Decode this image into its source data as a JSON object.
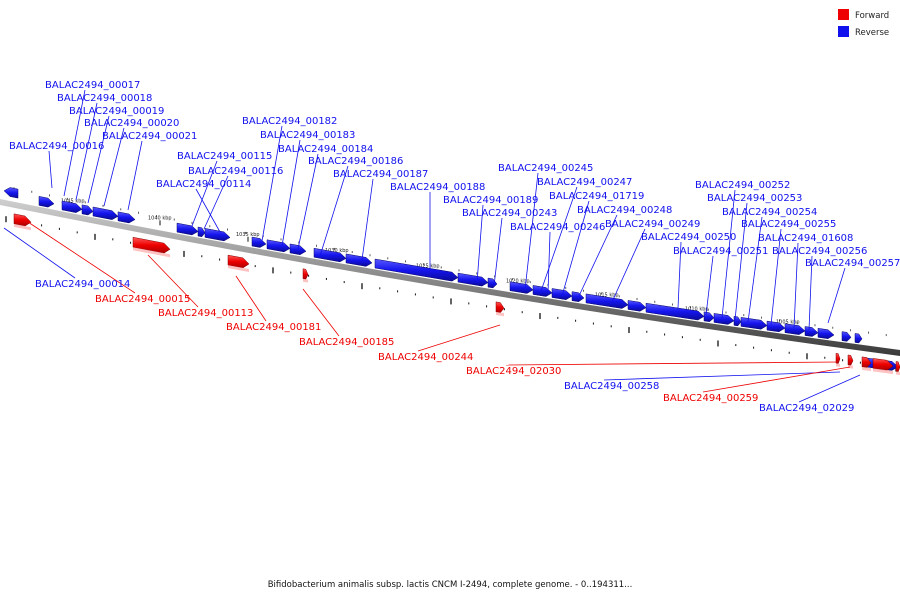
{
  "legend": {
    "forward_label": "Forward",
    "reverse_label": "Reverse",
    "forward_color": "#ee0000",
    "reverse_color": "#1111ee"
  },
  "caption": "Bifidobacterium animalis subsp. lactis CNCM I-2494, complete genome. - 0..194311...",
  "scale_labels": [
    "1045 kbp",
    "1040 kbp",
    "1035 kbp",
    "1030 kbp",
    "1025 kbp",
    "1020 kbp",
    "1015 kbp",
    "1010 kbp",
    "1005 kbp"
  ],
  "genes": [
    {
      "id": "BALAC2494_00016",
      "strand": "reverse"
    },
    {
      "id": "BALAC2494_00017",
      "strand": "reverse"
    },
    {
      "id": "BALAC2494_00018",
      "strand": "reverse"
    },
    {
      "id": "BALAC2494_00019",
      "strand": "reverse"
    },
    {
      "id": "BALAC2494_00020",
      "strand": "reverse"
    },
    {
      "id": "BALAC2494_00021",
      "strand": "reverse"
    },
    {
      "id": "BALAC2494_00115",
      "strand": "reverse"
    },
    {
      "id": "BALAC2494_00116",
      "strand": "reverse"
    },
    {
      "id": "BALAC2494_00114",
      "strand": "reverse"
    },
    {
      "id": "BALAC2494_00182",
      "strand": "reverse"
    },
    {
      "id": "BALAC2494_00183",
      "strand": "reverse"
    },
    {
      "id": "BALAC2494_00184",
      "strand": "reverse"
    },
    {
      "id": "BALAC2494_00186",
      "strand": "reverse"
    },
    {
      "id": "BALAC2494_00187",
      "strand": "reverse"
    },
    {
      "id": "BALAC2494_00188",
      "strand": "reverse"
    },
    {
      "id": "BALAC2494_00189",
      "strand": "reverse"
    },
    {
      "id": "BALAC2494_00243",
      "strand": "reverse"
    },
    {
      "id": "BALAC2494_00245",
      "strand": "reverse"
    },
    {
      "id": "BALAC2494_00247",
      "strand": "reverse"
    },
    {
      "id": "BALAC2494_01719",
      "strand": "reverse"
    },
    {
      "id": "BALAC2494_00248",
      "strand": "reverse"
    },
    {
      "id": "BALAC2494_00246",
      "strand": "reverse"
    },
    {
      "id": "BALAC2494_00249",
      "strand": "reverse"
    },
    {
      "id": "BALAC2494_00250",
      "strand": "reverse"
    },
    {
      "id": "BALAC2494_00251",
      "strand": "reverse"
    },
    {
      "id": "BALAC2494_00252",
      "strand": "reverse"
    },
    {
      "id": "BALAC2494_00253",
      "strand": "reverse"
    },
    {
      "id": "BALAC2494_00254",
      "strand": "reverse"
    },
    {
      "id": "BALAC2494_00255",
      "strand": "reverse"
    },
    {
      "id": "BALAC2494_01608",
      "strand": "reverse"
    },
    {
      "id": "BALAC2494_00256",
      "strand": "reverse"
    },
    {
      "id": "BALAC2494_00257",
      "strand": "reverse"
    },
    {
      "id": "BALAC2494_00014",
      "strand": "reverse"
    },
    {
      "id": "BALAC2494_00015",
      "strand": "forward"
    },
    {
      "id": "BALAC2494_00113",
      "strand": "forward"
    },
    {
      "id": "BALAC2494_00181",
      "strand": "forward"
    },
    {
      "id": "BALAC2494_00185",
      "strand": "forward"
    },
    {
      "id": "BALAC2494_00244",
      "strand": "forward"
    },
    {
      "id": "BALAC2494_02030",
      "strand": "forward"
    },
    {
      "id": "BALAC2494_00258",
      "strand": "reverse"
    },
    {
      "id": "BALAC2494_00259",
      "strand": "forward"
    },
    {
      "id": "BALAC2494_02029",
      "strand": "reverse"
    }
  ]
}
